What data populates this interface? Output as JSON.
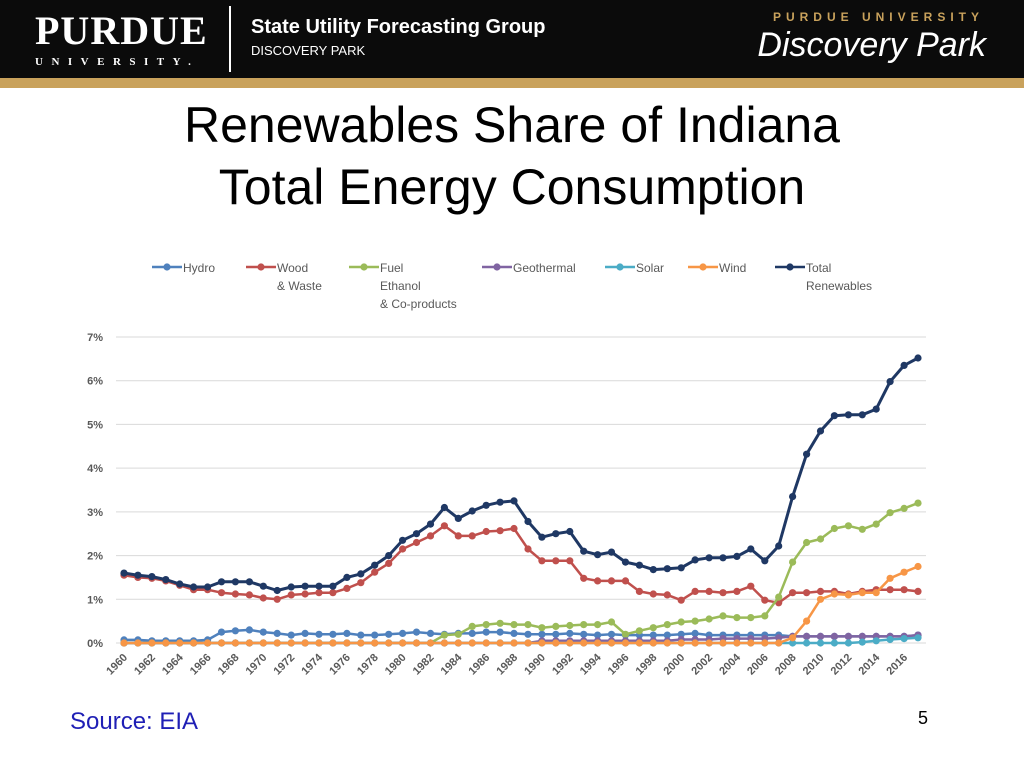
{
  "header": {
    "brand": "PURDUE",
    "brand_sub": "UNIVERSITY.",
    "group_name": "State Utility Forecasting Group",
    "group_sub": "DISCOVERY PARK",
    "right_small": "PURDUE UNIVERSITY",
    "right_logo": "Discovery Park",
    "colors": {
      "bar": "#0b0b0b",
      "gold": "#c9a25c"
    }
  },
  "slide": {
    "title_line1": "Renewables Share of Indiana",
    "title_line2": "Total Energy Consumption",
    "source": "Source: EIA",
    "page_number": "5"
  },
  "chart_data": {
    "type": "line",
    "title": "",
    "xlabel": "",
    "ylabel": "",
    "ylim": [
      0,
      7
    ],
    "y_ticks": [
      "0%",
      "1%",
      "2%",
      "3%",
      "4%",
      "5%",
      "6%",
      "7%"
    ],
    "x": [
      1960,
      1961,
      1962,
      1963,
      1964,
      1965,
      1966,
      1967,
      1968,
      1969,
      1970,
      1971,
      1972,
      1973,
      1974,
      1975,
      1976,
      1977,
      1978,
      1979,
      1980,
      1981,
      1982,
      1983,
      1984,
      1985,
      1986,
      1987,
      1988,
      1989,
      1990,
      1991,
      1992,
      1993,
      1994,
      1995,
      1996,
      1997,
      1998,
      1999,
      2000,
      2001,
      2002,
      2003,
      2004,
      2005,
      2006,
      2007,
      2008,
      2009,
      2010,
      2011,
      2012,
      2013,
      2014,
      2015,
      2016,
      2017
    ],
    "x_tick_labels": [
      "1960",
      "1962",
      "1964",
      "1966",
      "1968",
      "1970",
      "1972",
      "1974",
      "1976",
      "1978",
      "1980",
      "1982",
      "1984",
      "1986",
      "1988",
      "1990",
      "1992",
      "1994",
      "1996",
      "1998",
      "2000",
      "2002",
      "2004",
      "2006",
      "2008",
      "2010",
      "2012",
      "2014",
      "2016"
    ],
    "grid": true,
    "legend_position": "top",
    "series": [
      {
        "name": "Hydro",
        "color": "#4f81bd",
        "values": [
          0.07,
          0.07,
          0.05,
          0.05,
          0.05,
          0.05,
          0.07,
          0.25,
          0.28,
          0.3,
          0.25,
          0.22,
          0.18,
          0.22,
          0.2,
          0.2,
          0.22,
          0.18,
          0.18,
          0.2,
          0.22,
          0.25,
          0.22,
          0.2,
          0.22,
          0.22,
          0.25,
          0.25,
          0.22,
          0.2,
          0.2,
          0.2,
          0.22,
          0.2,
          0.18,
          0.2,
          0.18,
          0.18,
          0.18,
          0.18,
          0.2,
          0.22,
          0.18,
          0.18,
          0.18,
          0.18,
          0.18,
          0.18,
          0.15,
          0.15,
          0.15,
          0.15,
          0.15,
          0.15,
          0.15,
          0.15,
          0.15,
          0.18
        ]
      },
      {
        "name": "Wood & Waste",
        "color": "#c0504d",
        "values": [
          1.55,
          1.5,
          1.48,
          1.42,
          1.32,
          1.22,
          1.22,
          1.15,
          1.12,
          1.1,
          1.03,
          1.0,
          1.1,
          1.12,
          1.15,
          1.15,
          1.25,
          1.38,
          1.62,
          1.82,
          2.15,
          2.3,
          2.45,
          2.68,
          2.45,
          2.45,
          2.55,
          2.57,
          2.62,
          2.15,
          1.88,
          1.88,
          1.88,
          1.48,
          1.42,
          1.42,
          1.42,
          1.18,
          1.12,
          1.1,
          0.98,
          1.18,
          1.18,
          1.15,
          1.18,
          1.3,
          0.98,
          0.92,
          1.15,
          1.15,
          1.18,
          1.18,
          1.12,
          1.18,
          1.22,
          1.22,
          1.22,
          1.18
        ]
      },
      {
        "name": "Fuel Ethanol & Co-products",
        "color": "#9bbb59",
        "values": [
          0,
          0,
          0,
          0,
          0,
          0,
          0,
          0,
          0,
          0,
          0,
          0,
          0,
          0,
          0,
          0,
          0,
          0,
          0,
          0,
          0,
          0,
          0,
          0.18,
          0.2,
          0.38,
          0.42,
          0.45,
          0.42,
          0.42,
          0.35,
          0.38,
          0.4,
          0.42,
          0.42,
          0.48,
          0.2,
          0.28,
          0.35,
          0.42,
          0.48,
          0.5,
          0.55,
          0.62,
          0.58,
          0.58,
          0.62,
          1.05,
          1.85,
          2.3,
          2.38,
          2.62,
          2.68,
          2.6,
          2.72,
          2.98,
          3.08,
          3.2
        ]
      },
      {
        "name": "Geothermal",
        "color": "#8064a2",
        "values": [
          0,
          0,
          0,
          0,
          0,
          0,
          0,
          0,
          0,
          0,
          0,
          0,
          0,
          0,
          0,
          0,
          0,
          0,
          0,
          0,
          0,
          0,
          0,
          0,
          0,
          0,
          0,
          0,
          0,
          0,
          0.05,
          0.05,
          0.05,
          0.05,
          0.05,
          0.05,
          0.05,
          0.05,
          0.05,
          0.05,
          0.08,
          0.08,
          0.08,
          0.1,
          0.1,
          0.1,
          0.1,
          0.12,
          0.15,
          0.15,
          0.15,
          0.15,
          0.15,
          0.15,
          0.15,
          0.15,
          0.15,
          0.18
        ]
      },
      {
        "name": "Solar",
        "color": "#4bacc6",
        "values": [
          0,
          0,
          0,
          0,
          0,
          0,
          0,
          0,
          0,
          0,
          0,
          0,
          0,
          0,
          0,
          0,
          0,
          0,
          0,
          0,
          0,
          0,
          0,
          0,
          0,
          0,
          0,
          0,
          0,
          0,
          0,
          0,
          0,
          0,
          0,
          0,
          0,
          0,
          0,
          0,
          0,
          0,
          0,
          0,
          0,
          0,
          0,
          0,
          0,
          0,
          0,
          0,
          0,
          0.02,
          0.05,
          0.08,
          0.1,
          0.12
        ]
      },
      {
        "name": "Wind",
        "color": "#f79646",
        "values": [
          0,
          0,
          0,
          0,
          0,
          0,
          0,
          0,
          0,
          0,
          0,
          0,
          0,
          0,
          0,
          0,
          0,
          0,
          0,
          0,
          0,
          0,
          0,
          0,
          0,
          0,
          0,
          0,
          0,
          0,
          0,
          0,
          0,
          0,
          0,
          0,
          0,
          0,
          0,
          0,
          0,
          0,
          0,
          0,
          0,
          0,
          0,
          0,
          0.12,
          0.5,
          1.0,
          1.12,
          1.1,
          1.15,
          1.15,
          1.48,
          1.62,
          1.75
        ]
      },
      {
        "name": "Total Renewables",
        "color": "#1f3864",
        "values": [
          1.6,
          1.55,
          1.52,
          1.45,
          1.35,
          1.28,
          1.28,
          1.4,
          1.4,
          1.4,
          1.3,
          1.2,
          1.28,
          1.3,
          1.3,
          1.3,
          1.5,
          1.58,
          1.78,
          2.0,
          2.35,
          2.5,
          2.72,
          3.1,
          2.85,
          3.02,
          3.15,
          3.22,
          3.25,
          2.78,
          2.42,
          2.5,
          2.55,
          2.1,
          2.02,
          2.08,
          1.85,
          1.78,
          1.68,
          1.7,
          1.72,
          1.9,
          1.95,
          1.95,
          1.98,
          2.15,
          1.88,
          2.22,
          3.35,
          4.32,
          4.85,
          5.2,
          5.22,
          5.22,
          5.35,
          5.98,
          6.35,
          6.52
        ]
      }
    ],
    "legend": [
      {
        "line1": "Hydro",
        "line2": "",
        "line3": ""
      },
      {
        "line1": "Wood",
        "line2": "& Waste",
        "line3": ""
      },
      {
        "line1": "Fuel",
        "line2": "Ethanol",
        "line3": "& Co-products"
      },
      {
        "line1": "Geothermal",
        "line2": "",
        "line3": ""
      },
      {
        "line1": "Solar",
        "line2": "",
        "line3": ""
      },
      {
        "line1": "Wind",
        "line2": "",
        "line3": ""
      },
      {
        "line1": "Total",
        "line2": "Renewables",
        "line3": ""
      }
    ]
  }
}
